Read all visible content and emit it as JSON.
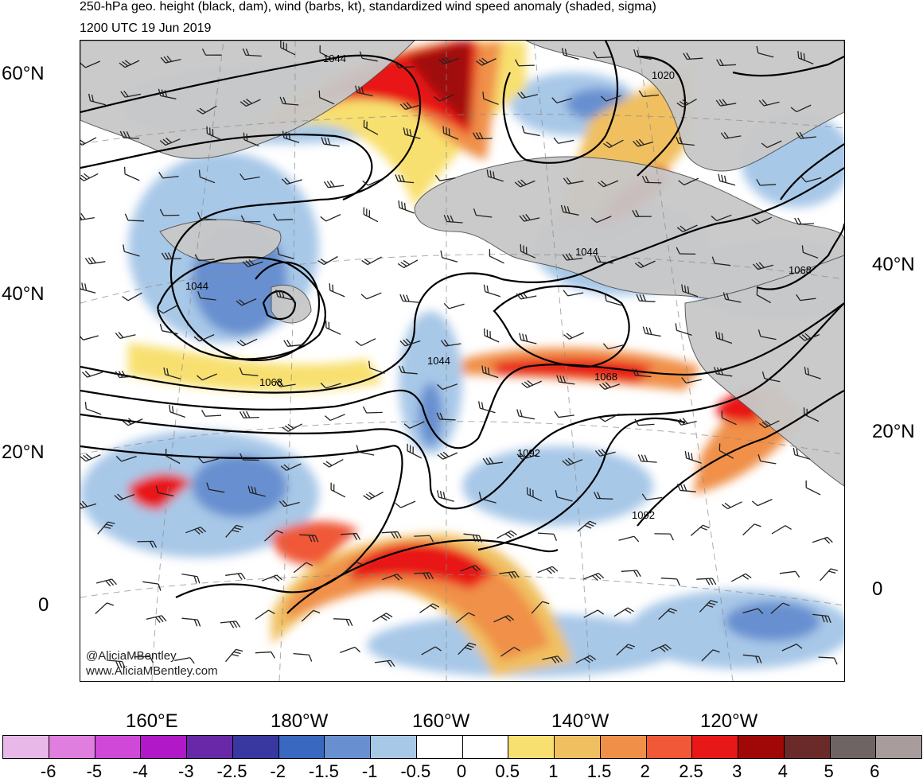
{
  "title": {
    "line1": "250-hPa geo. height (black, dam), wind (barbs, kt), standardized wind speed anomaly (shaded, sigma)",
    "line2": "1200 UTC 19 Jun 2019"
  },
  "map": {
    "projection": "polar-stereographic",
    "land_color": "#c8c8c8",
    "contour_labels": [
      "1044",
      "1020",
      "1044",
      "1044",
      "1068",
      "1044",
      "1068",
      "1068",
      "1092",
      "1092"
    ],
    "left_lat_labels": [
      "60°N",
      "40°N",
      "20°N",
      "0"
    ],
    "right_lat_labels": [
      "40°N",
      "20°N",
      "0"
    ],
    "bottom_lon_labels": [
      "160°E",
      "180°W",
      "160°W",
      "140°W",
      "120°W"
    ],
    "credits": [
      "@AliciaMBentley",
      "www.AliciaMBentley.com"
    ]
  },
  "colorbar": {
    "labels": [
      "-6",
      "-5",
      "-4",
      "-3",
      "-2.5",
      "-2",
      "-1.5",
      "-1",
      "-0.5",
      "0",
      "0.5",
      "1",
      "1.5",
      "2",
      "2.5",
      "3",
      "4",
      "5",
      "6"
    ],
    "colors": [
      "#e8b8e8",
      "#e07ee0",
      "#d048d8",
      "#b018c8",
      "#6828a8",
      "#3838a0",
      "#3868c0",
      "#6890d0",
      "#a8c8e8",
      "#ffffff",
      "#ffffff",
      "#f8e070",
      "#f0c060",
      "#f09048",
      "#f05838",
      "#e81818",
      "#a00808",
      "#6a2a2a",
      "#6e6464",
      "#a89c9c"
    ]
  }
}
